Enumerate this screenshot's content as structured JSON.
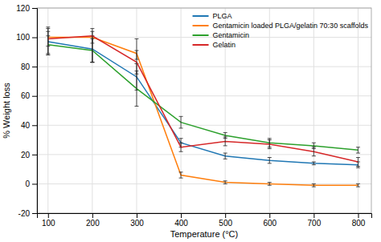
{
  "chart_data": {
    "type": "line",
    "x_label": "Temperature (°C)",
    "y_label": "% Weight loss",
    "x": [
      100,
      200,
      300,
      400,
      500,
      600,
      700,
      800
    ],
    "xlim": [
      75,
      830
    ],
    "ylim": [
      -20,
      120
    ],
    "xticks": [
      100,
      200,
      300,
      400,
      500,
      600,
      700,
      800
    ],
    "yticks": [
      -20,
      0,
      20,
      40,
      60,
      80,
      100,
      120
    ],
    "grid": true,
    "legend": "upper right",
    "series": [
      {
        "name": "PLGA",
        "values": [
          97,
          92,
          73,
          28,
          19,
          16,
          14,
          13
        ],
        "error_low": [
          9,
          9,
          9,
          3,
          2,
          2,
          1,
          2
        ],
        "error_high": [
          9,
          9,
          9,
          3,
          2,
          2,
          1,
          2
        ]
      },
      {
        "name": "Gentamicin loaded PLGA/gelatin 70:30 scaffolds",
        "values": [
          100,
          100,
          89,
          6,
          1,
          0,
          -1,
          -1
        ],
        "error_low": [
          12,
          4,
          4,
          2,
          1,
          1,
          1,
          1
        ],
        "error_high": [
          7,
          4,
          10,
          2,
          1,
          1,
          1,
          1
        ]
      },
      {
        "name": "Gentamicin",
        "values": [
          95,
          91,
          65,
          42,
          33,
          28,
          26,
          23
        ],
        "error_low": [
          6,
          8,
          12,
          4,
          2,
          3,
          2,
          2
        ],
        "error_high": [
          6,
          8,
          12,
          4,
          2,
          3,
          2,
          2
        ]
      },
      {
        "name": "Gelatin",
        "values": [
          99,
          101,
          83,
          25,
          29,
          27,
          22,
          15
        ],
        "error_low": [
          5,
          18,
          8,
          3,
          3,
          3,
          3,
          3
        ],
        "error_high": [
          5,
          5,
          8,
          3,
          3,
          3,
          3,
          3
        ]
      }
    ]
  }
}
